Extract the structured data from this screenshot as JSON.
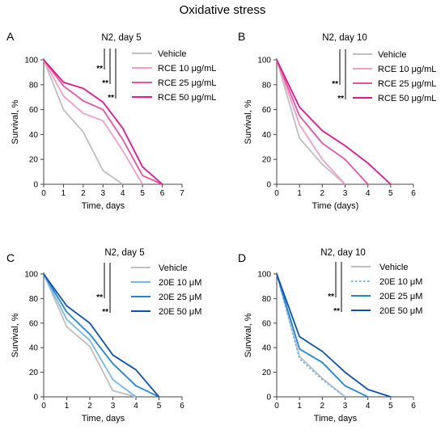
{
  "figure_title": "Oxidative stress",
  "chart_data": [
    {
      "panel_label": "A",
      "title": "N2, day 5",
      "type": "line",
      "xlabel": "Time, days",
      "ylabel": "Survival, %",
      "xlim": [
        0,
        7
      ],
      "ylim": [
        0,
        100
      ],
      "xticks": [
        0,
        1,
        2,
        3,
        4,
        5,
        6,
        7
      ],
      "yticks": [
        0,
        20,
        40,
        60,
        80,
        100
      ],
      "legend_position": "top-right",
      "significance": [
        "**",
        "**",
        "**"
      ],
      "series": [
        {
          "name": "Vehicle",
          "color": "#bfbfbf",
          "dashed": false,
          "x": [
            0,
            1,
            2,
            3,
            4
          ],
          "y": [
            100,
            60,
            42,
            11,
            0
          ]
        },
        {
          "name": "RCE 10 μg/mL",
          "color": "#f59cc8",
          "dashed": false,
          "x": [
            0,
            1,
            2,
            3,
            4,
            5
          ],
          "y": [
            100,
            71,
            57,
            51,
            27,
            0
          ]
        },
        {
          "name": "RCE 25 μg/mL",
          "color": "#f0509f",
          "dashed": false,
          "x": [
            0,
            1,
            2,
            3,
            4,
            5,
            6
          ],
          "y": [
            100,
            79,
            67,
            60,
            36,
            7,
            0
          ]
        },
        {
          "name": "RCE 50 μg/mL",
          "color": "#e6168c",
          "dashed": false,
          "x": [
            0,
            1,
            2,
            3,
            4,
            5,
            6
          ],
          "y": [
            100,
            82,
            77,
            66,
            45,
            14,
            0
          ]
        }
      ]
    },
    {
      "panel_label": "B",
      "title": "N2, day 10",
      "type": "line",
      "xlabel": "Time (days)",
      "ylabel": "Survival, %",
      "xlim": [
        0,
        6
      ],
      "ylim": [
        0,
        100
      ],
      "xticks": [
        0,
        1,
        2,
        3,
        4,
        5,
        6
      ],
      "yticks": [
        0,
        20,
        40,
        60,
        80,
        100
      ],
      "legend_position": "top-right",
      "significance": [
        "**",
        "**"
      ],
      "series": [
        {
          "name": "Vehicle",
          "color": "#bfbfbf",
          "dashed": false,
          "x": [
            0,
            1,
            2,
            3
          ],
          "y": [
            100,
            37,
            16,
            0
          ]
        },
        {
          "name": "RCE 10 μg/mL",
          "color": "#f59cc8",
          "dashed": false,
          "x": [
            0,
            1,
            2,
            3
          ],
          "y": [
            100,
            48,
            20,
            0
          ]
        },
        {
          "name": "RCE 25 μg/mL",
          "color": "#f0509f",
          "dashed": false,
          "x": [
            0,
            1,
            2,
            3,
            4
          ],
          "y": [
            100,
            55,
            33,
            20,
            0
          ]
        },
        {
          "name": "RCE 50 μg/mL",
          "color": "#e6168c",
          "dashed": false,
          "x": [
            0,
            1,
            2,
            3,
            4,
            5
          ],
          "y": [
            100,
            62,
            43,
            31,
            17,
            0
          ]
        }
      ]
    },
    {
      "panel_label": "C",
      "title": "N2, day 5",
      "type": "line",
      "xlabel": "Time, days",
      "ylabel": "Survival, %",
      "xlim": [
        0,
        6
      ],
      "ylim": [
        0,
        100
      ],
      "xticks": [
        0,
        1,
        2,
        3,
        4,
        5,
        6
      ],
      "yticks": [
        0,
        20,
        40,
        60,
        80,
        100
      ],
      "legend_position": "top-right",
      "significance": [
        "**",
        "**"
      ],
      "series": [
        {
          "name": "Vehicle",
          "color": "#bfbfbf",
          "dashed": false,
          "x": [
            0,
            1,
            2,
            3,
            4
          ],
          "y": [
            100,
            57,
            41,
            5,
            0
          ]
        },
        {
          "name": "20E 10 μM",
          "color": "#74b9ea",
          "dashed": false,
          "x": [
            0,
            1,
            2,
            3,
            4
          ],
          "y": [
            100,
            63,
            46,
            14,
            0
          ]
        },
        {
          "name": "20E 25 μM",
          "color": "#1f86d8",
          "dashed": false,
          "x": [
            0,
            1,
            2,
            3,
            4,
            5
          ],
          "y": [
            100,
            69,
            51,
            27,
            9,
            0
          ]
        },
        {
          "name": "20E 50 μM",
          "color": "#0b52b8",
          "dashed": false,
          "x": [
            0,
            1,
            2,
            3,
            4,
            5
          ],
          "y": [
            100,
            74,
            60,
            34,
            22,
            0
          ]
        }
      ]
    },
    {
      "panel_label": "D",
      "title": "N2, day 10",
      "type": "line",
      "xlabel": "Time, days",
      "ylabel": "Survival, %",
      "xlim": [
        0,
        6
      ],
      "ylim": [
        0,
        100
      ],
      "xticks": [
        0,
        1,
        2,
        3,
        4,
        5,
        6
      ],
      "yticks": [
        0,
        20,
        40,
        60,
        80,
        100
      ],
      "legend_position": "top-right",
      "significance": [
        "**",
        "**"
      ],
      "series": [
        {
          "name": "Vehicle",
          "color": "#bfbfbf",
          "dashed": false,
          "x": [
            0,
            1,
            2,
            3
          ],
          "y": [
            100,
            33,
            15,
            0
          ]
        },
        {
          "name": "20E 10 μM",
          "color": "#74b9ea",
          "dashed": true,
          "x": [
            0,
            1,
            2,
            3
          ],
          "y": [
            100,
            31,
            14,
            0
          ]
        },
        {
          "name": "20E 25 μM",
          "color": "#1f86d8",
          "dashed": false,
          "x": [
            0,
            1,
            2,
            3,
            4
          ],
          "y": [
            100,
            39,
            28,
            9,
            0
          ]
        },
        {
          "name": "20E 50 μM",
          "color": "#0b52b8",
          "dashed": false,
          "x": [
            0,
            1,
            2,
            3,
            4,
            5
          ],
          "y": [
            100,
            49,
            37,
            20,
            6,
            0
          ]
        }
      ]
    }
  ]
}
